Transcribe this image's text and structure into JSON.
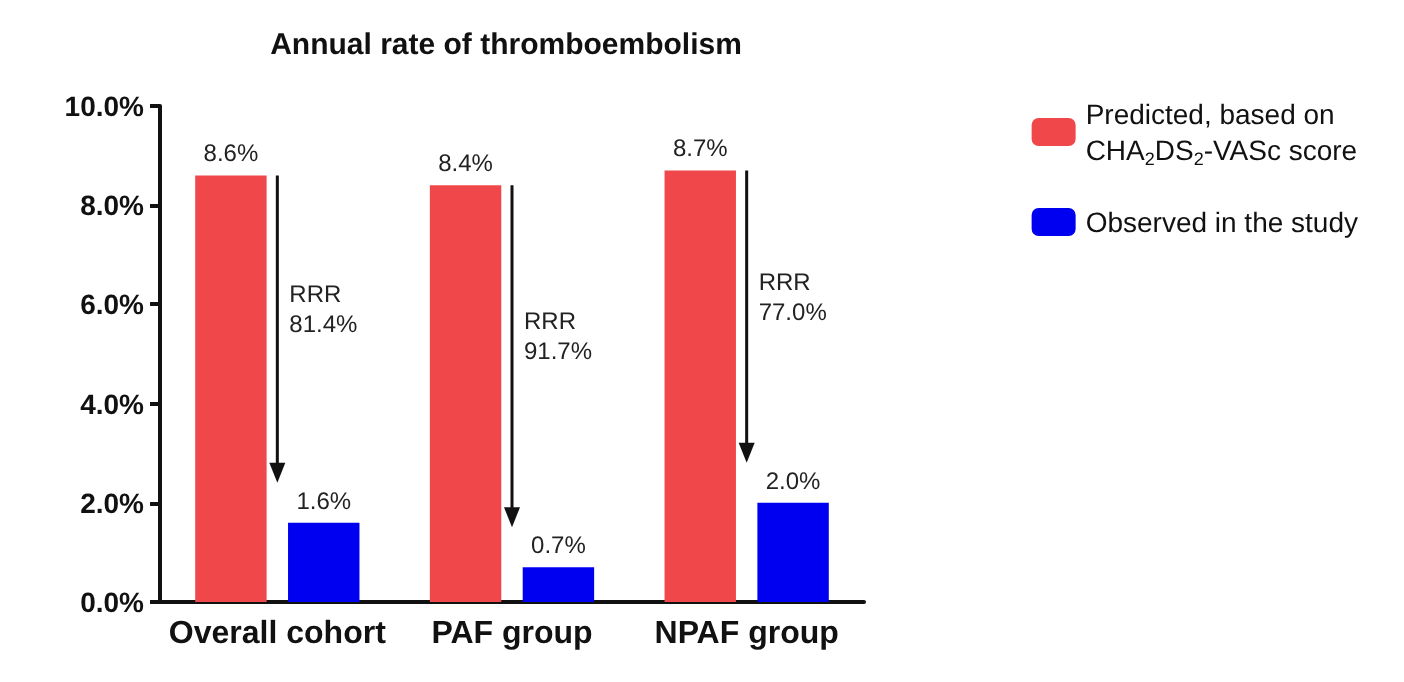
{
  "chart_data": {
    "type": "bar",
    "title": "Annual rate of thromboembolism",
    "categories": [
      "Overall cohort",
      "PAF group",
      "NPAF group"
    ],
    "series": [
      {
        "name": "Predicted, based on\nCHA$_{2}$DS$_{2}$-VASc score",
        "color": "#f0484a",
        "values": [
          8.6,
          8.4,
          8.7
        ],
        "value_labels": [
          "8.6%",
          "8.4%",
          "8.7%"
        ]
      },
      {
        "name": "Observed in the study",
        "color": "#0000f0",
        "values": [
          1.6,
          0.7,
          2.0
        ],
        "value_labels": [
          "1.6%",
          "0.7%",
          "2.0%"
        ]
      }
    ],
    "ylim": [
      0,
      10
    ],
    "yticks": [
      {
        "value": 0,
        "label": "0.0%"
      },
      {
        "value": 2,
        "label": "2.0%"
      },
      {
        "value": 4,
        "label": "4.0%"
      },
      {
        "value": 6,
        "label": "6.0%"
      },
      {
        "value": 8,
        "label": "8.0%"
      },
      {
        "value": 10,
        "label": "10.0%"
      }
    ],
    "annotations": [
      "RRR\n81.4%",
      "RRR\n91.7%",
      "RRR\n77.0%"
    ],
    "grid": false,
    "legend": "top right"
  }
}
